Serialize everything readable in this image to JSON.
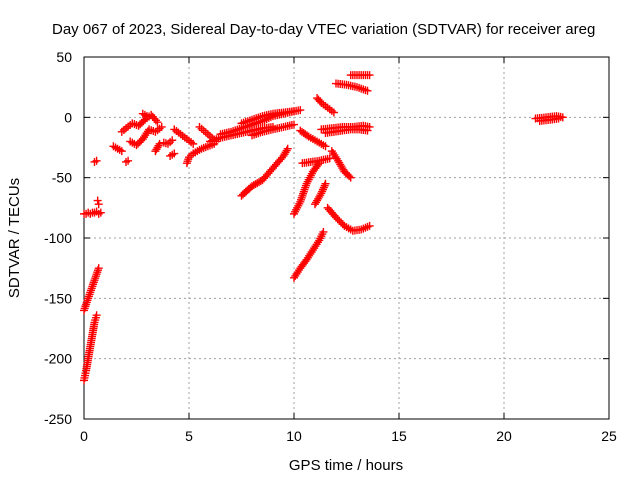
{
  "chart_data": {
    "type": "scatter",
    "title": "Day 067 of 2023, Sidereal Day-to-day VTEC variation (SDTVAR) for receiver areg",
    "xlabel": "GPS time / hours",
    "ylabel": "SDTVAR / TECUs",
    "xlim": [
      0,
      25
    ],
    "ylim": [
      -250,
      50
    ],
    "xticks": [
      0,
      5,
      10,
      15,
      20,
      25
    ],
    "yticks": [
      -250,
      -200,
      -150,
      -100,
      -50,
      0,
      50
    ],
    "xtick_labels": [
      "0",
      "5",
      "10",
      "15",
      "20",
      "25"
    ],
    "ytick_labels": [
      "-250",
      "-200",
      "-150",
      "-100",
      "-50",
      "0",
      "50"
    ],
    "grid": true,
    "marker": "plus",
    "color": "#ff0000",
    "segments": [
      {
        "name": "arc-1",
        "x": [
          0.0,
          0.1,
          0.2,
          0.3,
          0.4,
          0.5,
          0.6,
          0.7,
          0.8
        ],
        "y": [
          -80,
          -80,
          -79,
          -80,
          -79,
          -79,
          -78,
          -80,
          -79
        ]
      },
      {
        "name": "arc-2",
        "x": [
          0.65,
          0.7
        ],
        "y": [
          -69,
          -72
        ]
      },
      {
        "name": "arc-3",
        "x": [
          0.5,
          0.6
        ],
        "y": [
          -37,
          -36
        ]
      },
      {
        "name": "arc-4",
        "x": [
          0.0,
          0.1,
          0.2,
          0.3,
          0.4,
          0.5,
          0.6,
          0.7
        ],
        "y": [
          -160,
          -155,
          -150,
          -145,
          -140,
          -135,
          -130,
          -125
        ]
      },
      {
        "name": "arc-5",
        "x": [
          0.0,
          0.1,
          0.2,
          0.3,
          0.4,
          0.5,
          0.6
        ],
        "y": [
          -218,
          -210,
          -200,
          -190,
          -180,
          -170,
          -164
        ]
      },
      {
        "name": "arc-6",
        "x": [
          1.4,
          1.6,
          1.8
        ],
        "y": [
          -24,
          -26,
          -28
        ]
      },
      {
        "name": "arc-7",
        "x": [
          2.0,
          2.1
        ],
        "y": [
          -37,
          -36
        ]
      },
      {
        "name": "arc-8",
        "x": [
          1.8,
          2.0,
          2.3,
          2.6,
          2.9,
          3.2,
          3.5
        ],
        "y": [
          -12,
          -9,
          -5,
          -7,
          -2,
          2,
          -4
        ]
      },
      {
        "name": "arc-9",
        "x": [
          2.2,
          2.5,
          2.8,
          3.1,
          3.4,
          3.7
        ],
        "y": [
          -20,
          -23,
          -18,
          -10,
          -12,
          -8
        ]
      },
      {
        "name": "arc-10",
        "x": [
          2.8,
          3.0
        ],
        "y": [
          3,
          1
        ]
      },
      {
        "name": "arc-11",
        "x": [
          3.4,
          3.5,
          3.6
        ],
        "y": [
          -28,
          -25,
          -22
        ]
      },
      {
        "name": "arc-12",
        "x": [
          3.8,
          4.0,
          4.2
        ],
        "y": [
          -21,
          -22,
          -19
        ]
      },
      {
        "name": "arc-13",
        "x": [
          4.3,
          4.6,
          4.9,
          5.2
        ],
        "y": [
          -10,
          -14,
          -18,
          -22
        ]
      },
      {
        "name": "arc-14",
        "x": [
          4.1,
          4.3
        ],
        "y": [
          -32,
          -30
        ]
      },
      {
        "name": "arc-15",
        "x": [
          4.9,
          5.0,
          5.2,
          5.4,
          5.6,
          5.9,
          6.2
        ],
        "y": [
          -38,
          -33,
          -30,
          -28,
          -26,
          -24,
          -22
        ]
      },
      {
        "name": "arc-16",
        "x": [
          5.5,
          5.7,
          5.9,
          6.1,
          6.3
        ],
        "y": [
          -8,
          -11,
          -14,
          -17,
          -20
        ]
      },
      {
        "name": "arc-17",
        "x": [
          6.0,
          6.5,
          7.0,
          7.5,
          8.0,
          8.5,
          9.0
        ],
        "y": [
          -20,
          -17,
          -15,
          -13,
          -11,
          -9,
          -8
        ]
      },
      {
        "name": "arc-18",
        "x": [
          6.5,
          7.0,
          7.5,
          8.0,
          8.5,
          9.0,
          9.5,
          10.0
        ],
        "y": [
          -14,
          -12,
          -9,
          -6,
          -3,
          1,
          3,
          5
        ]
      },
      {
        "name": "arc-19",
        "x": [
          7.5,
          8.0,
          8.5,
          9.0,
          9.5,
          10.0,
          10.3
        ],
        "y": [
          -5,
          -2,
          1,
          3,
          4,
          5,
          6
        ]
      },
      {
        "name": "arc-20",
        "x": [
          8.0,
          8.5,
          9.0,
          9.5,
          10.0
        ],
        "y": [
          -15,
          -12,
          -10,
          -8,
          -6
        ]
      },
      {
        "name": "arc-21",
        "x": [
          7.5,
          8.0,
          8.5,
          9.0,
          9.5,
          9.7
        ],
        "y": [
          -65,
          -57,
          -52,
          -42,
          -32,
          -26
        ]
      },
      {
        "name": "arc-22",
        "x": [
          10.0,
          10.3,
          10.6,
          10.9,
          11.2
        ],
        "y": [
          -80,
          -70,
          -55,
          -45,
          -38
        ]
      },
      {
        "name": "arc-23",
        "x": [
          10.3,
          10.7,
          11.1,
          11.5
        ],
        "y": [
          -11,
          -16,
          -20,
          -24
        ]
      },
      {
        "name": "arc-24",
        "x": [
          10.4,
          10.8,
          11.2,
          11.7
        ],
        "y": [
          -38,
          -37,
          -36,
          -34
        ]
      },
      {
        "name": "arc-25",
        "x": [
          11.3,
          11.8,
          12.3,
          12.8,
          13.3,
          13.6
        ],
        "y": [
          -10,
          -9,
          -8,
          -8,
          -7,
          -8
        ]
      },
      {
        "name": "arc-26",
        "x": [
          11.5,
          11.9,
          12.3,
          12.7,
          13.1,
          13.5
        ],
        "y": [
          -13,
          -12,
          -11,
          -10,
          -10,
          -11
        ]
      },
      {
        "name": "arc-27",
        "x": [
          10.0,
          10.3,
          10.6,
          10.9,
          11.2,
          11.4
        ],
        "y": [
          -133,
          -125,
          -118,
          -110,
          -102,
          -95
        ]
      },
      {
        "name": "arc-28",
        "x": [
          11.0,
          11.3,
          11.5
        ],
        "y": [
          -72,
          -63,
          -55
        ]
      },
      {
        "name": "arc-29",
        "x": [
          11.1,
          11.3,
          11.6,
          11.9
        ],
        "y": [
          16,
          12,
          8,
          4
        ]
      },
      {
        "name": "arc-30",
        "x": [
          11.8,
          12.1,
          12.4,
          12.7
        ],
        "y": [
          -28,
          -36,
          -45,
          -50
        ]
      },
      {
        "name": "arc-31",
        "x": [
          11.6,
          12.0,
          12.4,
          12.8,
          13.2,
          13.6
        ],
        "y": [
          -75,
          -83,
          -90,
          -94,
          -93,
          -90
        ]
      },
      {
        "name": "arc-32",
        "x": [
          12.7,
          13.0,
          13.3,
          13.6
        ],
        "y": [
          35,
          35,
          35,
          35
        ]
      },
      {
        "name": "arc-33",
        "x": [
          12.0,
          12.5,
          13.0,
          13.5
        ],
        "y": [
          28,
          27,
          25,
          22
        ]
      },
      {
        "name": "arc-34",
        "x": [
          21.5,
          22.0,
          22.5,
          22.8
        ],
        "y": [
          -1,
          0,
          1,
          0
        ]
      },
      {
        "name": "arc-35",
        "x": [
          21.7,
          22.2,
          22.6
        ],
        "y": [
          -3,
          -2,
          -1
        ]
      }
    ]
  }
}
